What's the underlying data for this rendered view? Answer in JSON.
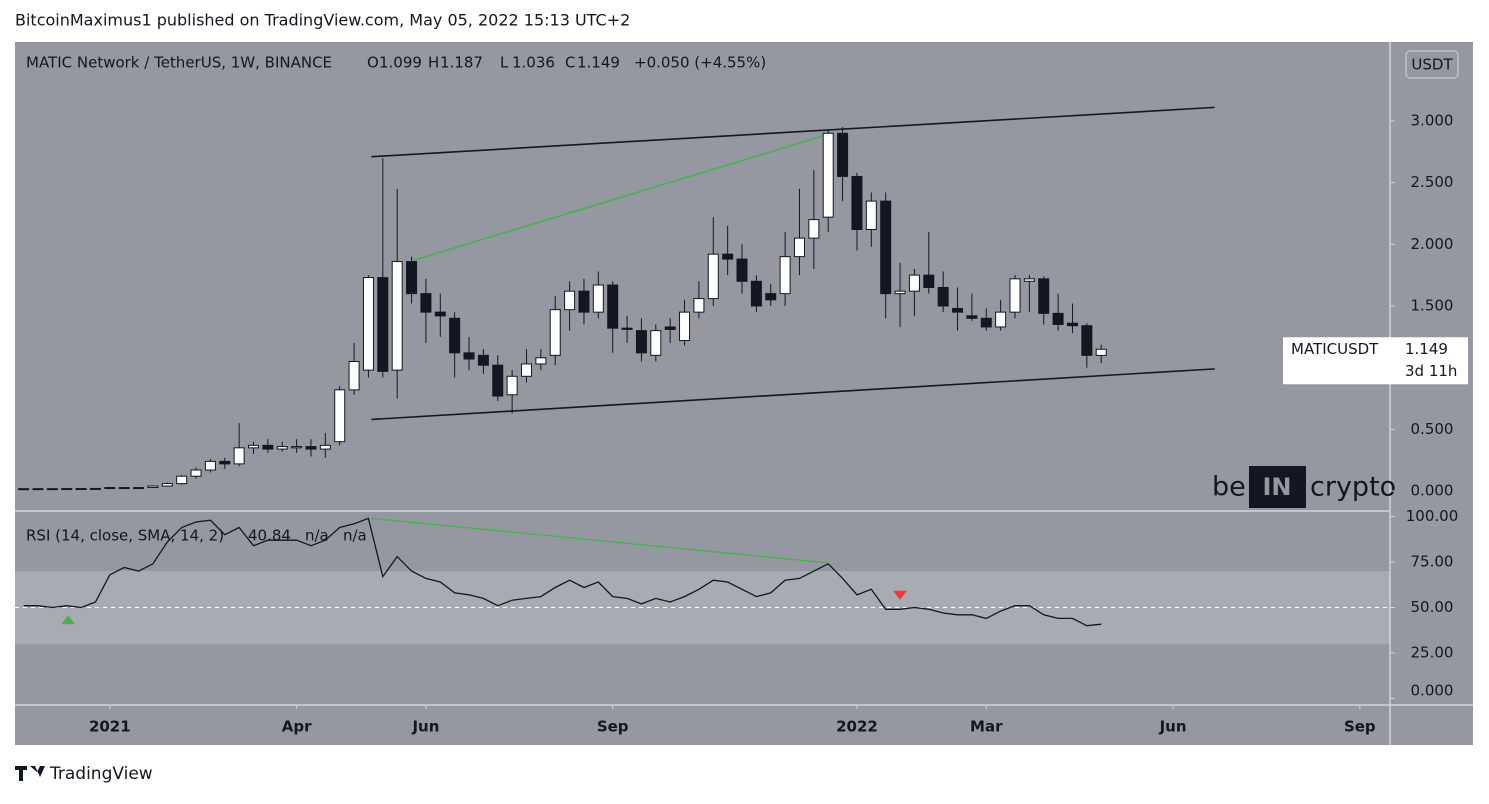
{
  "header": {
    "published": "BitcoinMaximus1 published on TradingView.com, May 05, 2022 15:13 UTC+2"
  },
  "footer": {
    "brand": "TradingView"
  },
  "chart_data": {
    "type": "candlestick",
    "title": "MATIC Network / TetherUS, 1W, BINANCE",
    "ohlc_labels": {
      "o": "O",
      "h": "H",
      "l": "L",
      "c": "C"
    },
    "ohlc_values": {
      "o": 1.099,
      "h": 1.187,
      "l": 1.036,
      "c": 1.149
    },
    "change": "+0.050 (+4.55%)",
    "currency_button": "USDT",
    "watermark": {
      "left": "be",
      "mid": "IN",
      "right": "crypto"
    },
    "price_label": {
      "symbol": "MATICUSDT",
      "value": 1.149,
      "countdown": "3d 11h"
    },
    "xlim": [
      -6.6,
      89.1
    ],
    "xticks": [
      {
        "value": 0,
        "label": "2021"
      },
      {
        "value": 13,
        "label": "Apr"
      },
      {
        "value": 22,
        "label": "Jun"
      },
      {
        "value": 35,
        "label": "Sep"
      },
      {
        "value": 52,
        "label": "2022"
      },
      {
        "value": 61,
        "label": "Mar"
      },
      {
        "value": 74,
        "label": "Jun"
      },
      {
        "value": 87,
        "label": "Sep"
      }
    ],
    "ylim": [
      -0.154,
      3.64
    ],
    "yticks": [
      {
        "value": 0,
        "label": "0.000"
      },
      {
        "value": 0.5,
        "label": "0.500"
      },
      {
        "value": 1.5,
        "label": "1.500"
      },
      {
        "value": 2,
        "label": "2.000"
      },
      {
        "value": 2.5,
        "label": "2.500"
      },
      {
        "value": 3,
        "label": "3.000"
      }
    ],
    "candles": {
      "x": [
        -6,
        -5,
        -4,
        -3,
        -2,
        -1,
        0,
        1,
        2,
        3,
        4,
        5,
        6,
        7,
        8,
        9,
        10,
        11,
        12,
        13,
        14,
        15,
        16,
        17,
        18,
        19,
        20,
        21,
        22,
        23,
        24,
        25,
        26,
        27,
        28,
        29,
        30,
        31,
        32,
        33,
        34,
        35,
        36,
        37,
        38,
        39,
        40,
        41,
        42,
        43,
        44,
        45,
        46,
        47,
        48,
        49,
        50,
        51,
        52,
        53,
        54,
        55,
        56,
        57,
        58,
        59,
        60,
        61,
        62,
        63,
        64,
        65,
        66,
        67,
        68,
        69
      ],
      "open": [
        0.018,
        0.019,
        0.018,
        0.019,
        0.02,
        0.019,
        0.021,
        0.028,
        0.024,
        0.028,
        0.04,
        0.06,
        0.12,
        0.17,
        0.24,
        0.22,
        0.35,
        0.37,
        0.34,
        0.35,
        0.36,
        0.34,
        0.4,
        0.82,
        0.98,
        1.73,
        0.98,
        1.86,
        1.6,
        1.45,
        1.4,
        1.12,
        1.1,
        1.02,
        0.78,
        0.93,
        1.03,
        1.1,
        1.47,
        1.62,
        1.45,
        1.67,
        1.32,
        1.3,
        1.1,
        1.33,
        1.22,
        1.45,
        1.56,
        1.92,
        1.88,
        1.7,
        1.6,
        1.6,
        1.9,
        2.05,
        2.22,
        2.9,
        2.55,
        2.12,
        2.35,
        1.6,
        1.62,
        1.75,
        1.65,
        1.48,
        1.42,
        1.4,
        1.33,
        1.45,
        1.7,
        1.72,
        1.44,
        1.36,
        1.34,
        1.099
      ],
      "high": [
        0.02,
        0.021,
        0.02,
        0.022,
        0.022,
        0.022,
        0.03,
        0.03,
        0.03,
        0.045,
        0.07,
        0.13,
        0.19,
        0.26,
        0.27,
        0.55,
        0.4,
        0.42,
        0.4,
        0.42,
        0.42,
        0.47,
        0.85,
        1.2,
        1.75,
        2.7,
        2.45,
        1.9,
        1.72,
        1.6,
        1.45,
        1.25,
        1.15,
        1.1,
        0.98,
        1.15,
        1.15,
        1.58,
        1.7,
        1.72,
        1.78,
        1.7,
        1.42,
        1.4,
        1.35,
        1.4,
        1.55,
        1.7,
        2.22,
        2.15,
        2.0,
        1.75,
        1.68,
        2.1,
        2.45,
        2.6,
        2.93,
        2.95,
        2.58,
        2.42,
        2.42,
        1.85,
        1.8,
        2.1,
        1.78,
        1.65,
        1.6,
        1.48,
        1.55,
        1.75,
        1.75,
        1.74,
        1.6,
        1.52,
        1.36,
        1.187
      ],
      "low": [
        0.016,
        0.017,
        0.016,
        0.018,
        0.018,
        0.018,
        0.02,
        0.022,
        0.022,
        0.026,
        0.035,
        0.05,
        0.1,
        0.15,
        0.18,
        0.2,
        0.3,
        0.31,
        0.32,
        0.31,
        0.28,
        0.27,
        0.37,
        0.78,
        0.92,
        0.92,
        0.75,
        1.52,
        1.2,
        1.25,
        0.92,
        0.98,
        0.95,
        0.73,
        0.63,
        0.88,
        0.98,
        1.02,
        1.3,
        1.35,
        1.4,
        1.12,
        1.2,
        1.05,
        1.05,
        1.2,
        1.18,
        1.4,
        1.5,
        1.75,
        1.6,
        1.45,
        1.5,
        1.5,
        1.75,
        1.8,
        2.1,
        2.35,
        1.95,
        1.98,
        1.4,
        1.33,
        1.42,
        1.6,
        1.45,
        1.3,
        1.38,
        1.3,
        1.3,
        1.4,
        1.45,
        1.35,
        1.3,
        1.28,
        1.0,
        1.036
      ],
      "close": [
        0.019,
        0.018,
        0.019,
        0.02,
        0.019,
        0.021,
        0.028,
        0.024,
        0.028,
        0.04,
        0.06,
        0.12,
        0.17,
        0.24,
        0.22,
        0.35,
        0.37,
        0.34,
        0.36,
        0.36,
        0.34,
        0.37,
        0.82,
        1.05,
        1.73,
        0.97,
        1.86,
        1.6,
        1.45,
        1.42,
        1.12,
        1.07,
        1.02,
        0.77,
        0.93,
        1.03,
        1.08,
        1.47,
        1.62,
        1.45,
        1.67,
        1.32,
        1.31,
        1.12,
        1.3,
        1.31,
        1.45,
        1.56,
        1.92,
        1.88,
        1.7,
        1.5,
        1.55,
        1.9,
        2.05,
        2.2,
        2.9,
        2.55,
        2.12,
        2.35,
        1.6,
        1.62,
        1.75,
        1.65,
        1.5,
        1.45,
        1.4,
        1.33,
        1.45,
        1.72,
        1.72,
        1.44,
        1.35,
        1.34,
        1.1,
        1.149
      ]
    },
    "up_color": "#ffffff",
    "down_color": "#131722",
    "trendlines": [
      {
        "x": [
          18.2,
          76.9
        ],
        "y": [
          2.71,
          3.11
        ],
        "color": "#131722"
      },
      {
        "x": [
          18.2,
          76.9
        ],
        "y": [
          0.58,
          0.99
        ],
        "color": "#131722"
      },
      {
        "x": [
          21,
          50.1
        ],
        "y": [
          1.865,
          2.895
        ],
        "color": "#4caf50"
      }
    ],
    "rsi": {
      "title": "RSI (14, close, SMA, 14, 2)",
      "value_label": "40.84",
      "na1": "n/a",
      "na2": "n/a",
      "ylim": [
        -3.6,
        102.5
      ],
      "yticks": [
        {
          "value": 0,
          "label": "0.000"
        },
        {
          "value": 25,
          "label": "25.00"
        },
        {
          "value": 50,
          "label": "50.00"
        },
        {
          "value": 75,
          "label": "75.00"
        },
        {
          "value": 100,
          "label": "100.00"
        }
      ],
      "band": [
        30,
        70
      ],
      "midline": 50,
      "color": "#131722",
      "values": [
        51,
        51,
        50,
        51,
        50,
        53,
        68,
        72,
        70,
        74,
        86,
        94,
        97,
        98,
        90,
        94,
        84,
        87,
        87,
        87,
        84,
        87,
        94,
        96,
        99,
        67,
        78,
        70,
        66,
        64,
        58,
        57,
        55,
        51,
        54,
        55,
        56,
        61,
        65,
        61,
        64,
        56,
        55,
        52,
        55,
        53,
        56,
        60,
        65,
        64,
        60,
        56,
        58,
        65,
        66,
        70,
        74,
        66,
        57,
        60,
        49,
        49,
        50,
        49,
        47,
        46,
        46,
        44,
        48,
        51,
        51,
        46,
        44,
        44,
        40,
        40.84
      ],
      "trendline": {
        "x": [
          18.2,
          50
        ],
        "y": [
          99,
          74.5
        ],
        "color": "#4caf50"
      },
      "markers": [
        {
          "x": -2.9,
          "y": 43,
          "dir": "up",
          "color": "#4caf50"
        },
        {
          "x": 55,
          "y": 57,
          "dir": "down",
          "color": "#f23645"
        }
      ]
    }
  }
}
